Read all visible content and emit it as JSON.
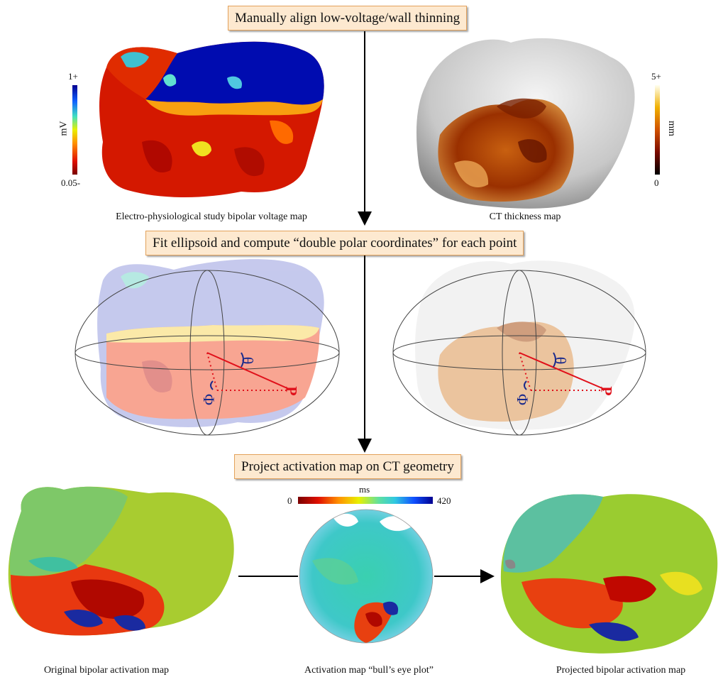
{
  "steps": {
    "step1": "Manually align low-voltage/wall thinning",
    "step2": "Fit ellipsoid and compute “double polar coordinates” for each point",
    "step3": "Project activation map on CT geometry"
  },
  "captions": {
    "voltage_map": "Electro-physiological study bipolar voltage map",
    "ct_map": "CT thickness map",
    "original_activation": "Original bipolar activation map",
    "bulls_eye": "Activation map “bull’s eye plot”",
    "projected_activation": "Projected bipolar activation map"
  },
  "voltage_scale": {
    "max_label": "1+",
    "min_label": "0.05-",
    "unit": "mV"
  },
  "thickness_scale": {
    "max_label": "5+",
    "min_label": "0",
    "unit": "mm"
  },
  "activation_scale": {
    "unit": "ms",
    "min_label": "0",
    "max_label": "420"
  },
  "coords": {
    "theta": "θ",
    "phi": "Φ",
    "point": "P"
  },
  "colors": {
    "step_fill": "#fde9d0",
    "step_border": "#e3a25c",
    "point_marker": "#e0101a",
    "angle_label": "#1a2a8c"
  },
  "icons": [
    "voltage-colorbar",
    "thickness-colorbar",
    "activation-colorbar",
    "ellipsoid-icon",
    "arrow-down-icon",
    "arrow-right-icon"
  ]
}
